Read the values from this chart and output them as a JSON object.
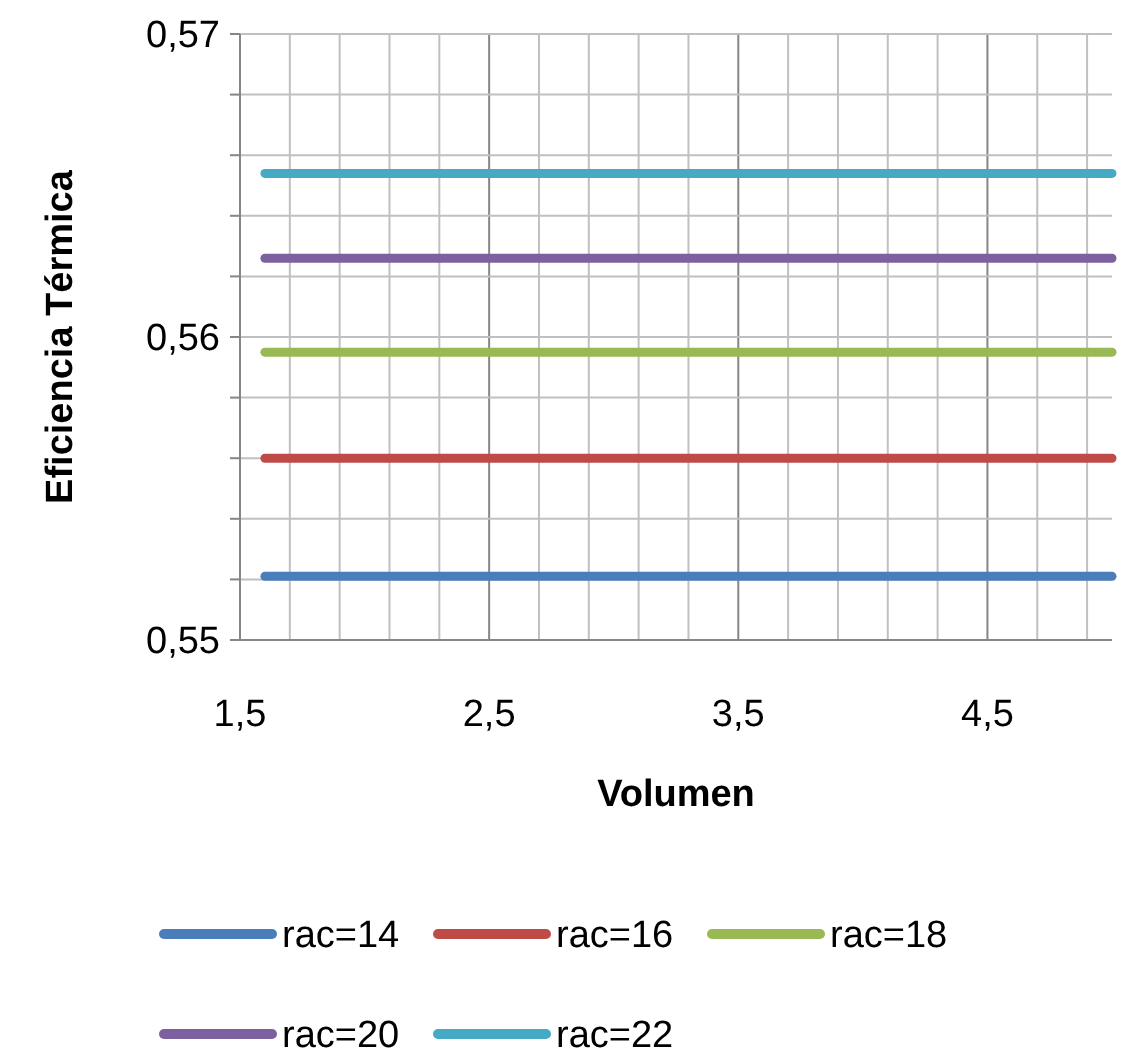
{
  "chart_data": {
    "type": "line",
    "xlabel": "Volumen",
    "ylabel": "Eficiencia Térmica",
    "x": [
      1.6,
      5.0
    ],
    "xlim": [
      1.5,
      5.0
    ],
    "ylim": [
      0.55,
      0.57
    ],
    "xticks": [
      {
        "value": 1.5,
        "label": "1,5"
      },
      {
        "value": 1.7,
        "label": null
      },
      {
        "value": 1.9,
        "label": null
      },
      {
        "value": 2.1,
        "label": null
      },
      {
        "value": 2.3,
        "label": null
      },
      {
        "value": 2.5,
        "label": "2,5"
      },
      {
        "value": 2.7,
        "label": null
      },
      {
        "value": 2.9,
        "label": null
      },
      {
        "value": 3.1,
        "label": null
      },
      {
        "value": 3.3,
        "label": null
      },
      {
        "value": 3.5,
        "label": "3,5"
      },
      {
        "value": 3.7,
        "label": null
      },
      {
        "value": 3.9,
        "label": null
      },
      {
        "value": 4.1,
        "label": null
      },
      {
        "value": 4.3,
        "label": null
      },
      {
        "value": 4.5,
        "label": "4,5"
      },
      {
        "value": 4.7,
        "label": null
      },
      {
        "value": 4.9,
        "label": null
      }
    ],
    "yticks": [
      {
        "value": 0.55,
        "label": "0,55"
      },
      {
        "value": 0.552,
        "label": null
      },
      {
        "value": 0.554,
        "label": null
      },
      {
        "value": 0.556,
        "label": null
      },
      {
        "value": 0.558,
        "label": null
      },
      {
        "value": 0.56,
        "label": "0,56"
      },
      {
        "value": 0.562,
        "label": null
      },
      {
        "value": 0.564,
        "label": null
      },
      {
        "value": 0.566,
        "label": null
      },
      {
        "value": 0.568,
        "label": null
      },
      {
        "value": 0.57,
        "label": "0,57"
      }
    ],
    "grid": true,
    "legend": "bottom",
    "marker": "none",
    "line_style": "solid",
    "series": [
      {
        "name": "rac=14",
        "color": "#4a7ebb",
        "values": [
          0.5521,
          0.5521
        ]
      },
      {
        "name": "rac=16",
        "color": "#be4b48",
        "values": [
          0.556,
          0.556
        ]
      },
      {
        "name": "rac=18",
        "color": "#98b954",
        "values": [
          0.5595,
          0.5595
        ]
      },
      {
        "name": "rac=20",
        "color": "#7d60a0",
        "values": [
          0.5626,
          0.5626
        ]
      },
      {
        "name": "rac=22",
        "color": "#46aac5",
        "values": [
          0.5654,
          0.5654
        ]
      }
    ]
  }
}
